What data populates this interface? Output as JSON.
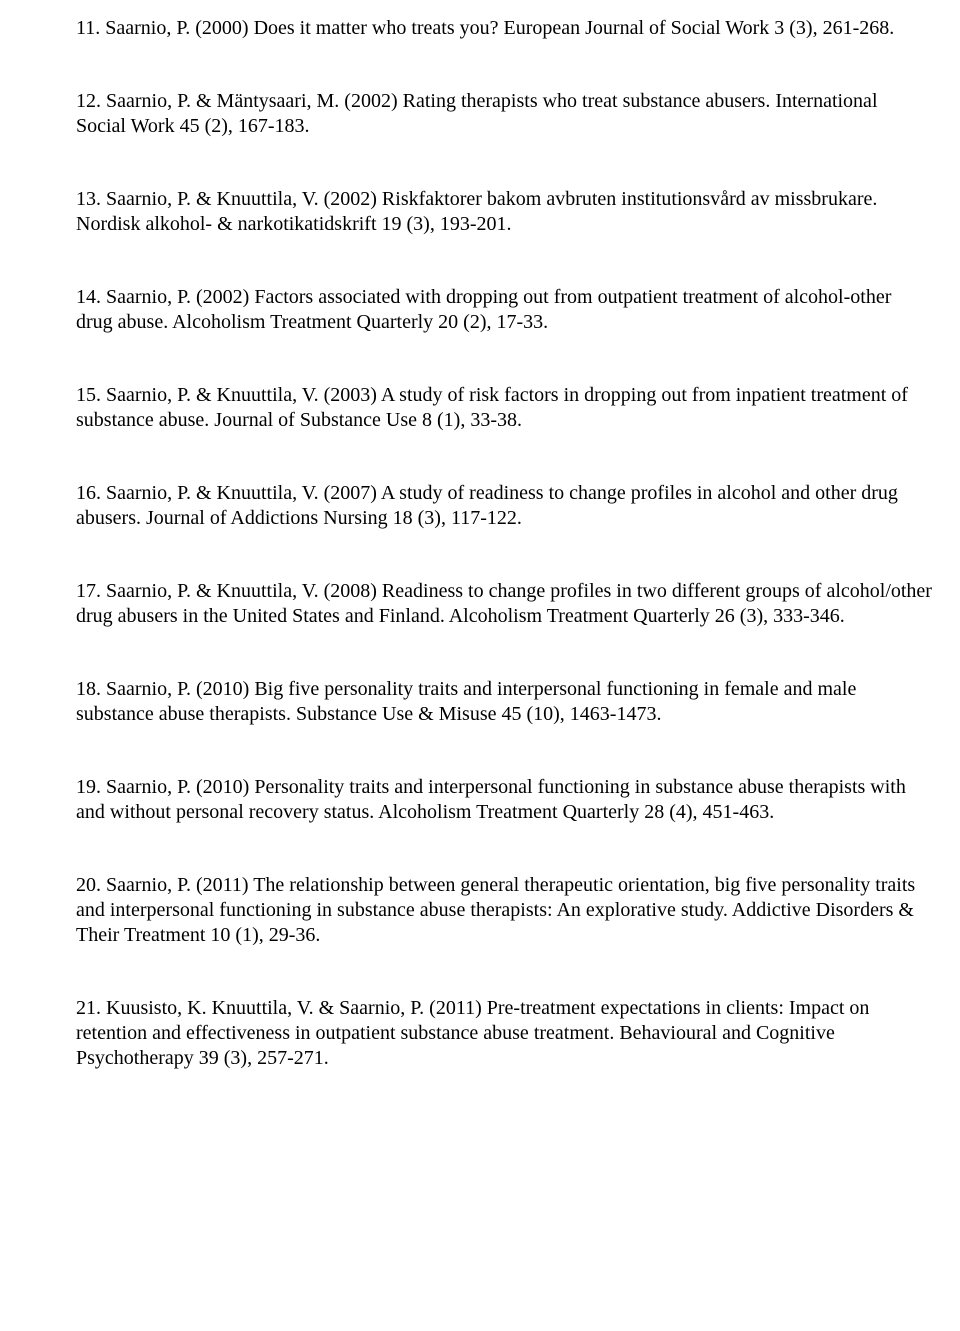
{
  "document": {
    "type": "bibliography",
    "font_family": "Times New Roman",
    "font_size_pt": 15,
    "text_color": "#000000",
    "background_color": "#ffffff",
    "references": [
      {
        "text": "11. Saarnio, P. (2000) Does it matter who treats you? European Journal of Social Work 3 (3), 261-268."
      },
      {
        "text": "12. Saarnio, P. & Mäntysaari, M. (2002) Rating therapists who treat substance abusers. International Social Work 45 (2), 167-183."
      },
      {
        "text": "13. Saarnio, P. & Knuuttila, V. (2002) Riskfaktorer bakom avbruten institutionsvård av missbrukare. Nordisk alkohol- & narkotikatidskrift 19 (3), 193-201."
      },
      {
        "text": "14. Saarnio, P. (2002) Factors associated with dropping out from outpatient treatment of alcohol-other drug abuse. Alcoholism Treatment Quarterly 20 (2), 17-33."
      },
      {
        "text": "15. Saarnio, P. & Knuuttila, V. (2003) A study of risk factors in dropping out from inpatient treatment of substance abuse. Journal of Substance Use 8 (1), 33-38."
      },
      {
        "text": "16. Saarnio, P. & Knuuttila, V. (2007) A study of readiness to change profiles in alcohol and other drug abusers. Journal of Addictions Nursing 18 (3), 117-122."
      },
      {
        "text": "17. Saarnio, P. & Knuuttila, V. (2008) Readiness to change profiles in two different groups of alcohol/other drug abusers in the United States and Finland. Alcoholism Treatment Quarterly 26 (3), 333-346."
      },
      {
        "text": "18. Saarnio, P. (2010) Big five personality traits and interpersonal functioning in female and male substance abuse therapists. Substance Use & Misuse 45 (10), 1463-1473."
      },
      {
        "text": "19. Saarnio, P. (2010) Personality traits and interpersonal functioning in substance abuse therapists with and without personal recovery status. Alcoholism Treatment Quarterly 28 (4), 451-463."
      },
      {
        "text": "20. Saarnio, P. (2011) The relationship between general therapeutic orientation, big five personality traits and interpersonal functioning in substance abuse therapists: An explorative study. Addictive Disorders & Their Treatment 10 (1), 29-36."
      },
      {
        "text": "21. Kuusisto, K. Knuuttila, V. & Saarnio, P. (2011) Pre-treatment expectations in clients: Impact on retention and effectiveness in outpatient substance abuse treatment. Behavioural and Cognitive Psychotherapy 39 (3), 257-271."
      }
    ]
  }
}
